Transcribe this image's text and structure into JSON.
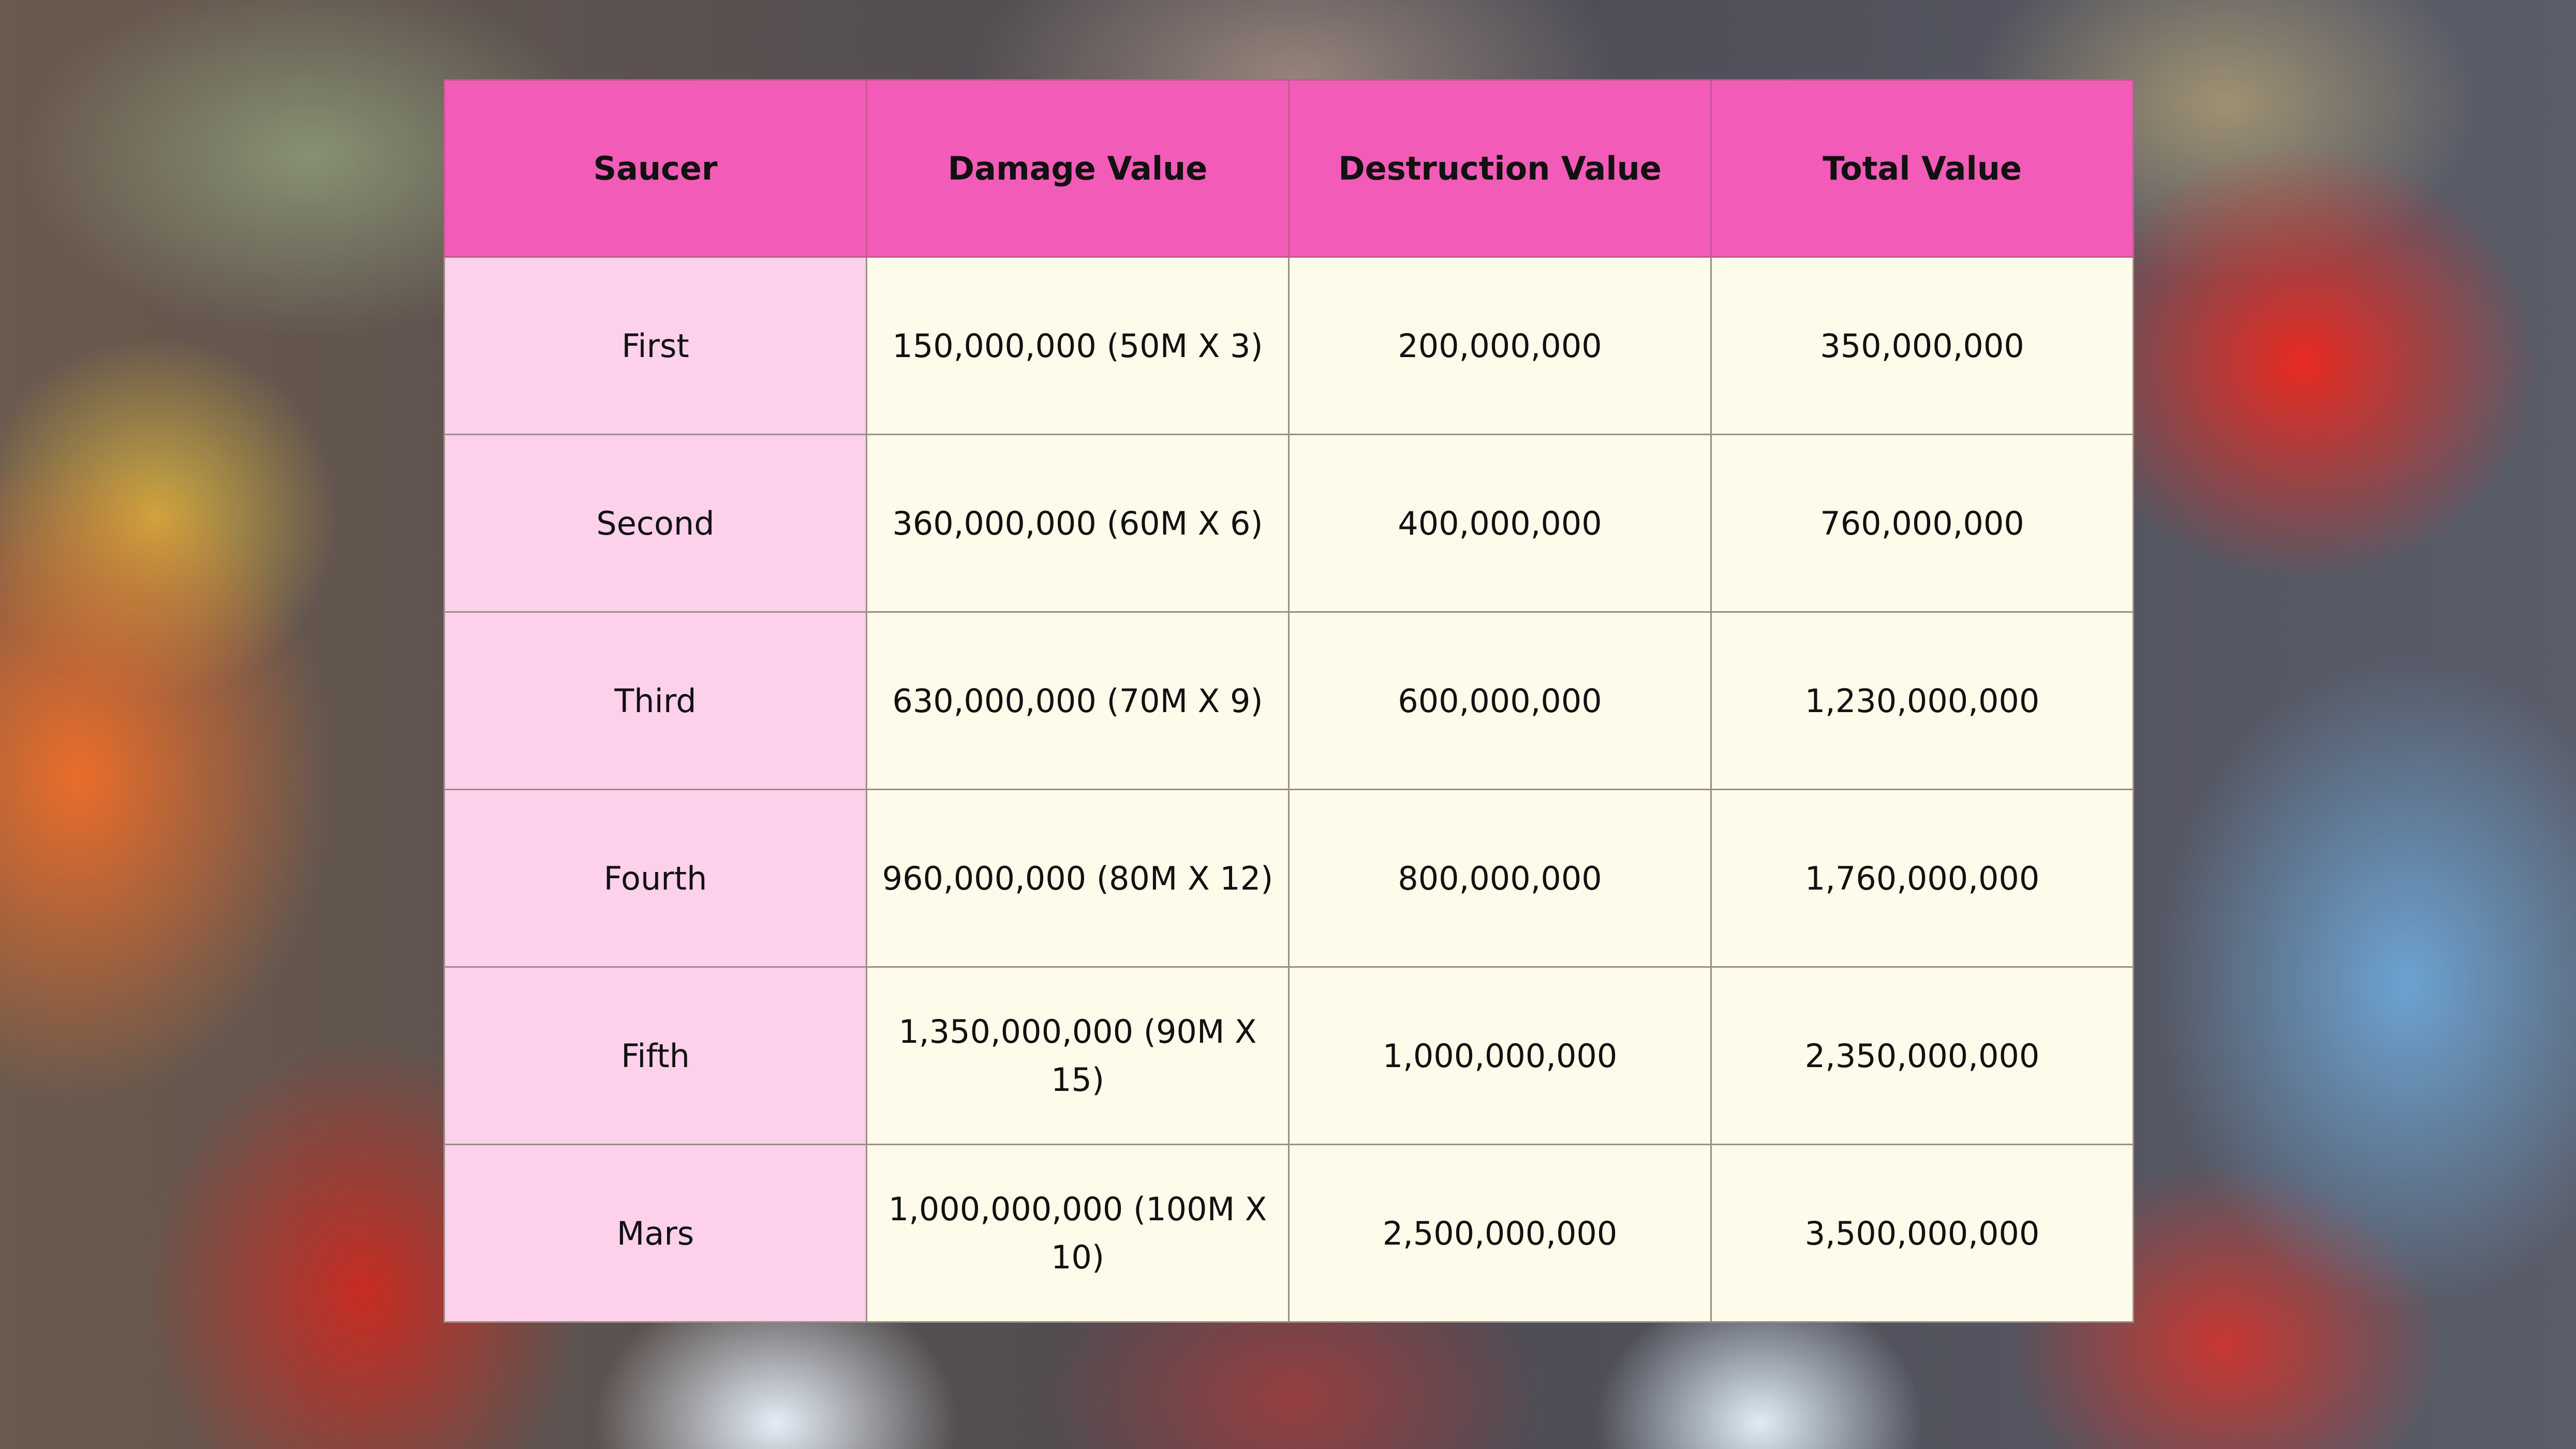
{
  "table": {
    "headers": [
      "Saucer",
      "Damage Value",
      "Destruction Value",
      "Total Value"
    ],
    "rows": [
      [
        "First",
        "150,000,000 (50M X 3)",
        "200,000,000",
        "350,000,000"
      ],
      [
        "Second",
        "360,000,000 (60M X 6)",
        "400,000,000",
        "760,000,000"
      ],
      [
        "Third",
        "630,000,000 (70M X 9)",
        "600,000,000",
        "1,230,000,000"
      ],
      [
        "Fourth",
        "960,000,000 (80M X 12)",
        "800,000,000",
        "1,760,000,000"
      ],
      [
        "Fifth",
        "1,350,000,000 (90M X 15)",
        "1,000,000,000",
        "2,350,000,000"
      ],
      [
        "Mars",
        "1,000,000,000 (100M X 10)",
        "2,500,000,000",
        "3,500,000,000"
      ]
    ]
  },
  "colors": {
    "header_bg": "#f25bb8",
    "first_col_bg": "#fdd0ec",
    "cell_bg": "#fffbea"
  }
}
